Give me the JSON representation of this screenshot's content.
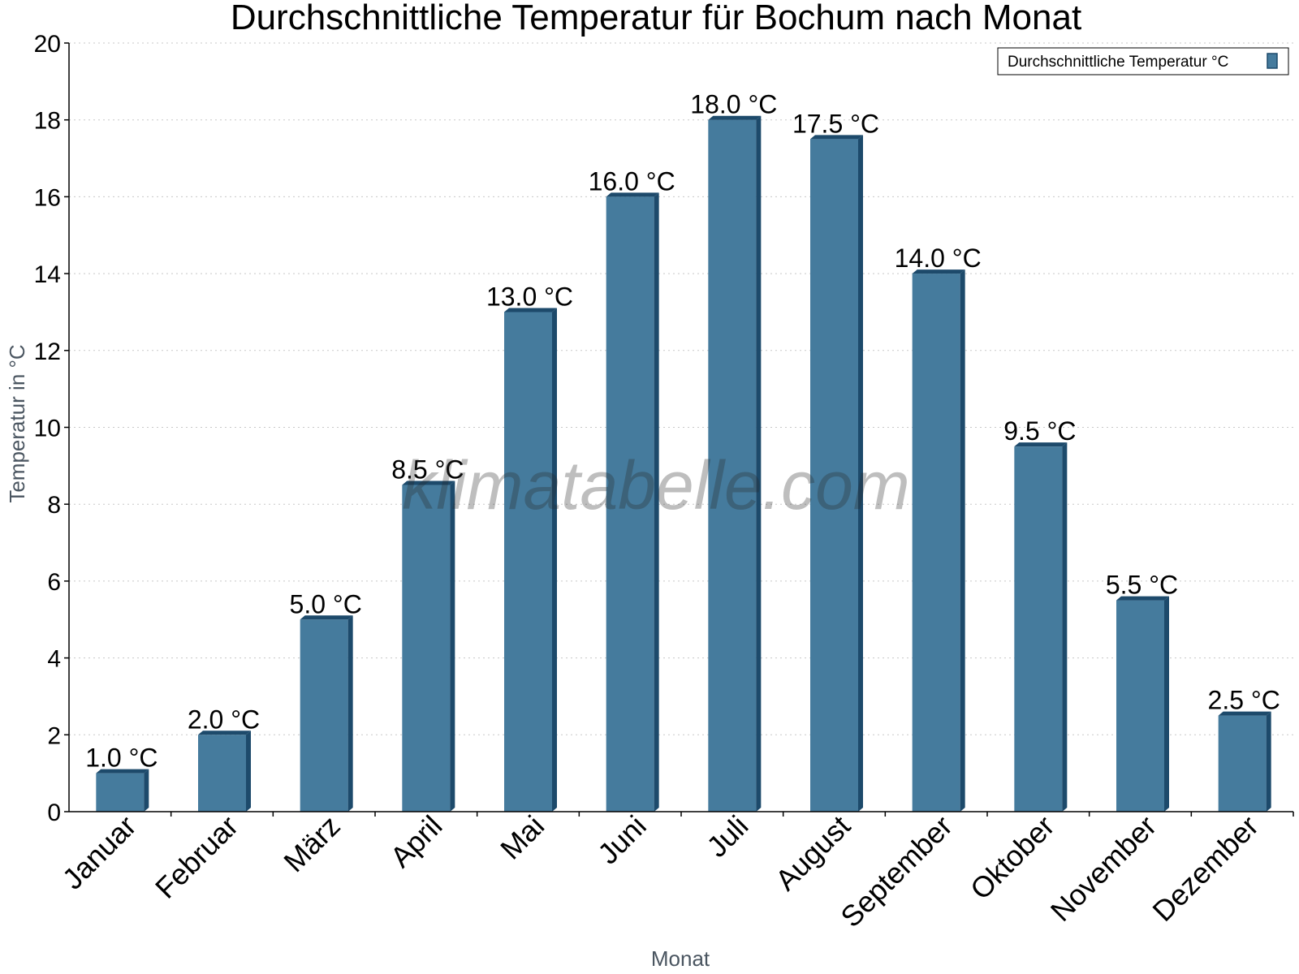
{
  "watermark": "klimatabelle.com",
  "colors": {
    "bar_face": "#457b9d",
    "bar_side": "#1d4a6b",
    "bar_top": "#1d4a6b",
    "grid": "#c8c8c8",
    "axis_label": "#4a5560"
  },
  "chart_data": {
    "type": "bar",
    "title": "Durchschnittliche Temperatur für Bochum nach Monat",
    "xlabel": "Monat",
    "ylabel": "Temperatur in °C",
    "ylim": [
      0,
      20
    ],
    "yticks": [
      0,
      2,
      4,
      6,
      8,
      10,
      12,
      14,
      16,
      18,
      20
    ],
    "grid": true,
    "legend_position": "top-right",
    "categories": [
      "Januar",
      "Februar",
      "März",
      "April",
      "Mai",
      "Juni",
      "Juli",
      "August",
      "September",
      "Oktober",
      "November",
      "Dezember"
    ],
    "series": [
      {
        "name": "Durchschnittliche Temperatur °C",
        "values": [
          1.0,
          2.0,
          5.0,
          8.5,
          13.0,
          16.0,
          18.0,
          17.5,
          14.0,
          9.5,
          5.5,
          2.5
        ],
        "data_labels": [
          "1.0 °C",
          "2.0 °C",
          "5.0 °C",
          "8.5 °C",
          "13.0 °C",
          "16.0 °C",
          "18.0 °C",
          "17.5 °C",
          "14.0 °C",
          "9.5 °C",
          "5.5 °C",
          "2.5 °C"
        ]
      }
    ]
  }
}
